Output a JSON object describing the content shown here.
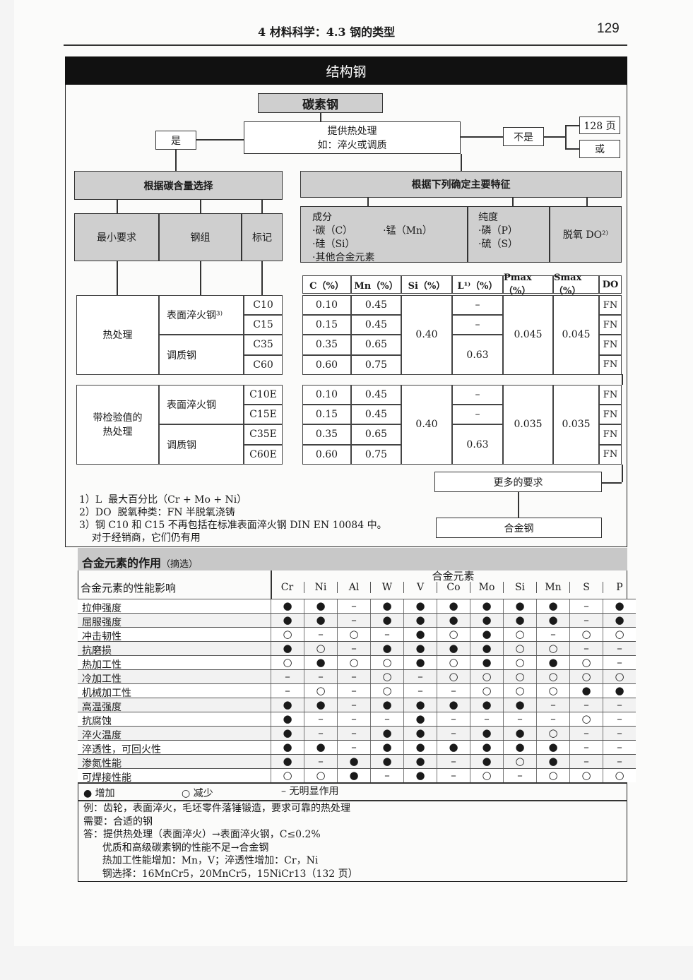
{
  "header": {
    "section": "4  材料科学：4.3  钢的类型",
    "page": "129"
  },
  "title": "结构钢",
  "flow": {
    "carbon_steel": "碳素钢",
    "heat_treat": "提供热处理",
    "heat_treat_eg": "如：淬火或调质",
    "yes": "是",
    "no": "不是",
    "page_ref": "128 页",
    "or": "或",
    "by_carbon": "根据碳含量选择",
    "by_features": "根据下列确定主要特征",
    "min_req": "最小要求",
    "steel_group": "钢组",
    "mark": "标记",
    "composition": "成分",
    "comp_items": [
      "·碳（C）",
      "·锰（Mn）",
      "·硅（Si）",
      "·其他合金元素"
    ],
    "purity": "纯度",
    "purity_items": [
      "·磷（P）",
      "·硫（S）"
    ],
    "deox": "脱氧 DO²⁾",
    "more_req": "更多的要求",
    "alloy_steel": "合金钢"
  },
  "steel_table": {
    "columns": [
      "C（%）",
      "Mn（%）",
      "Si（%）",
      "L¹⁾（%）",
      "Pmax（%）",
      "Smax（%）",
      "DO"
    ],
    "groups": [
      {
        "label": "热处理",
        "sub": [
          {
            "name": "表面淬火钢³⁾"
          },
          {
            "name": "调质钢"
          }
        ],
        "si": "0.40",
        "l": [
          "–",
          "–",
          "0.63"
        ],
        "p": "0.045",
        "s": "0.045",
        "rows": [
          [
            "C10",
            "0.10",
            "0.45",
            "FN"
          ],
          [
            "C15",
            "0.15",
            "0.45",
            "FN"
          ],
          [
            "C35",
            "0.35",
            "0.65",
            "FN"
          ],
          [
            "C60",
            "0.60",
            "0.75",
            "FN"
          ]
        ]
      },
      {
        "label": "带检验值的热处理",
        "sub": [
          {
            "name": "表面淬火钢"
          },
          {
            "name": "调质钢"
          }
        ],
        "si": "0.40",
        "l": [
          "–",
          "–",
          "0.63"
        ],
        "p": "0.035",
        "s": "0.035",
        "rows": [
          [
            "C10E",
            "0.10",
            "0.45",
            "FN"
          ],
          [
            "C15E",
            "0.15",
            "0.45",
            "FN"
          ],
          [
            "C35E",
            "0.35",
            "0.65",
            "FN"
          ],
          [
            "C60E",
            "0.60",
            "0.75",
            "FN"
          ]
        ]
      }
    ]
  },
  "footnotes": [
    "1）L  最大百分比（Cr + Mo + Ni）",
    "2）DO  脱氧种类：FN 半脱氧浇铸",
    "3）钢 C10 和 C15 不再包括在标准表面淬火钢 DIN EN 10084 中。",
    "    对于经销商，它们仍有用"
  ],
  "alloy": {
    "title": "合金元素的作用",
    "title_note": "（摘选）",
    "row_header": "合金元素的性能影响",
    "col_group": "合金元素",
    "elements": [
      "Cr",
      "Ni",
      "Al",
      "W",
      "V",
      "Co",
      "Mo",
      "Si",
      "Mn",
      "S",
      "P"
    ],
    "rows": [
      {
        "label": "拉伸强度",
        "v": "●●–●●●●●●–●"
      },
      {
        "label": "屈服强度",
        "v": "●●–●●●●●●–●"
      },
      {
        "label": "冲击韧性",
        "v": "○–○–●○●○–○○"
      },
      {
        "label": "抗磨损",
        "v": "●○–●●●●○○––"
      },
      {
        "label": "热加工性",
        "v": "○●○○●○●○●○–"
      },
      {
        "label": "冷加工性",
        "v": "–––○–○○○○○○"
      },
      {
        "label": "机械加工性",
        "v": "–○–○––○○○●●"
      },
      {
        "label": "高温强度",
        "v": "●●–●●●●●–––"
      },
      {
        "label": "抗腐蚀",
        "v": "●–––●––––○–"
      },
      {
        "label": "淬火温度",
        "v": "●––●●–●●○––"
      },
      {
        "label": "淬透性，可回火性",
        "v": "●●–●●●●●●––"
      },
      {
        "label": "渗氮性能",
        "v": "●–●●●–●○●––"
      },
      {
        "label": "可焊接性能",
        "v": "○○●–●–○–○○○"
      }
    ],
    "legend": {
      "increase": "● 增加",
      "decrease": "○ 减少",
      "none": "– 无明显作用"
    }
  },
  "example": [
    "例：齿轮，表面淬火，毛坯零件落锤锻造，要求可靠的热处理",
    "需要：合适的钢",
    "答：提供热处理（表面淬火）→表面淬火钢，C≤0.2%",
    "      优质和高级碳素钢的性能不足→合金钢",
    "      热加工性能增加：Mn，V；淬透性增加：Cr，Ni",
    "      钢选择：16MnCr5，20MnCr5，15NiCr13（132 页）"
  ]
}
